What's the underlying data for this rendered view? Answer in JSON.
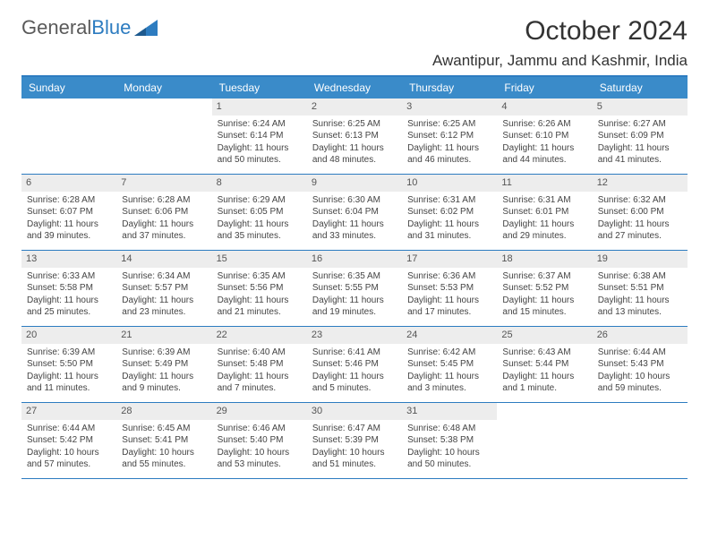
{
  "brand": {
    "part1": "General",
    "part2": "Blue"
  },
  "title": "October 2024",
  "location": "Awantipur, Jammu and Kashmir, India",
  "colors": {
    "header_bar": "#3a8bc9",
    "rule": "#2d7cc0",
    "daynum_bg": "#ededed",
    "text": "#333333",
    "background": "#ffffff"
  },
  "fonts": {
    "title_pt": 30,
    "location_pt": 17,
    "dow_pt": 12,
    "cell_pt": 10
  },
  "dow": [
    "Sunday",
    "Monday",
    "Tuesday",
    "Wednesday",
    "Thursday",
    "Friday",
    "Saturday"
  ],
  "weeks": [
    [
      null,
      null,
      {
        "n": "1",
        "sr": "6:24 AM",
        "ss": "6:14 PM",
        "dl": "11 hours and 50 minutes."
      },
      {
        "n": "2",
        "sr": "6:25 AM",
        "ss": "6:13 PM",
        "dl": "11 hours and 48 minutes."
      },
      {
        "n": "3",
        "sr": "6:25 AM",
        "ss": "6:12 PM",
        "dl": "11 hours and 46 minutes."
      },
      {
        "n": "4",
        "sr": "6:26 AM",
        "ss": "6:10 PM",
        "dl": "11 hours and 44 minutes."
      },
      {
        "n": "5",
        "sr": "6:27 AM",
        "ss": "6:09 PM",
        "dl": "11 hours and 41 minutes."
      }
    ],
    [
      {
        "n": "6",
        "sr": "6:28 AM",
        "ss": "6:07 PM",
        "dl": "11 hours and 39 minutes."
      },
      {
        "n": "7",
        "sr": "6:28 AM",
        "ss": "6:06 PM",
        "dl": "11 hours and 37 minutes."
      },
      {
        "n": "8",
        "sr": "6:29 AM",
        "ss": "6:05 PM",
        "dl": "11 hours and 35 minutes."
      },
      {
        "n": "9",
        "sr": "6:30 AM",
        "ss": "6:04 PM",
        "dl": "11 hours and 33 minutes."
      },
      {
        "n": "10",
        "sr": "6:31 AM",
        "ss": "6:02 PM",
        "dl": "11 hours and 31 minutes."
      },
      {
        "n": "11",
        "sr": "6:31 AM",
        "ss": "6:01 PM",
        "dl": "11 hours and 29 minutes."
      },
      {
        "n": "12",
        "sr": "6:32 AM",
        "ss": "6:00 PM",
        "dl": "11 hours and 27 minutes."
      }
    ],
    [
      {
        "n": "13",
        "sr": "6:33 AM",
        "ss": "5:58 PM",
        "dl": "11 hours and 25 minutes."
      },
      {
        "n": "14",
        "sr": "6:34 AM",
        "ss": "5:57 PM",
        "dl": "11 hours and 23 minutes."
      },
      {
        "n": "15",
        "sr": "6:35 AM",
        "ss": "5:56 PM",
        "dl": "11 hours and 21 minutes."
      },
      {
        "n": "16",
        "sr": "6:35 AM",
        "ss": "5:55 PM",
        "dl": "11 hours and 19 minutes."
      },
      {
        "n": "17",
        "sr": "6:36 AM",
        "ss": "5:53 PM",
        "dl": "11 hours and 17 minutes."
      },
      {
        "n": "18",
        "sr": "6:37 AM",
        "ss": "5:52 PM",
        "dl": "11 hours and 15 minutes."
      },
      {
        "n": "19",
        "sr": "6:38 AM",
        "ss": "5:51 PM",
        "dl": "11 hours and 13 minutes."
      }
    ],
    [
      {
        "n": "20",
        "sr": "6:39 AM",
        "ss": "5:50 PM",
        "dl": "11 hours and 11 minutes."
      },
      {
        "n": "21",
        "sr": "6:39 AM",
        "ss": "5:49 PM",
        "dl": "11 hours and 9 minutes."
      },
      {
        "n": "22",
        "sr": "6:40 AM",
        "ss": "5:48 PM",
        "dl": "11 hours and 7 minutes."
      },
      {
        "n": "23",
        "sr": "6:41 AM",
        "ss": "5:46 PM",
        "dl": "11 hours and 5 minutes."
      },
      {
        "n": "24",
        "sr": "6:42 AM",
        "ss": "5:45 PM",
        "dl": "11 hours and 3 minutes."
      },
      {
        "n": "25",
        "sr": "6:43 AM",
        "ss": "5:44 PM",
        "dl": "11 hours and 1 minute."
      },
      {
        "n": "26",
        "sr": "6:44 AM",
        "ss": "5:43 PM",
        "dl": "10 hours and 59 minutes."
      }
    ],
    [
      {
        "n": "27",
        "sr": "6:44 AM",
        "ss": "5:42 PM",
        "dl": "10 hours and 57 minutes."
      },
      {
        "n": "28",
        "sr": "6:45 AM",
        "ss": "5:41 PM",
        "dl": "10 hours and 55 minutes."
      },
      {
        "n": "29",
        "sr": "6:46 AM",
        "ss": "5:40 PM",
        "dl": "10 hours and 53 minutes."
      },
      {
        "n": "30",
        "sr": "6:47 AM",
        "ss": "5:39 PM",
        "dl": "10 hours and 51 minutes."
      },
      {
        "n": "31",
        "sr": "6:48 AM",
        "ss": "5:38 PM",
        "dl": "10 hours and 50 minutes."
      },
      null,
      null
    ]
  ],
  "labels": {
    "sunrise": "Sunrise:",
    "sunset": "Sunset:",
    "daylight": "Daylight:"
  }
}
